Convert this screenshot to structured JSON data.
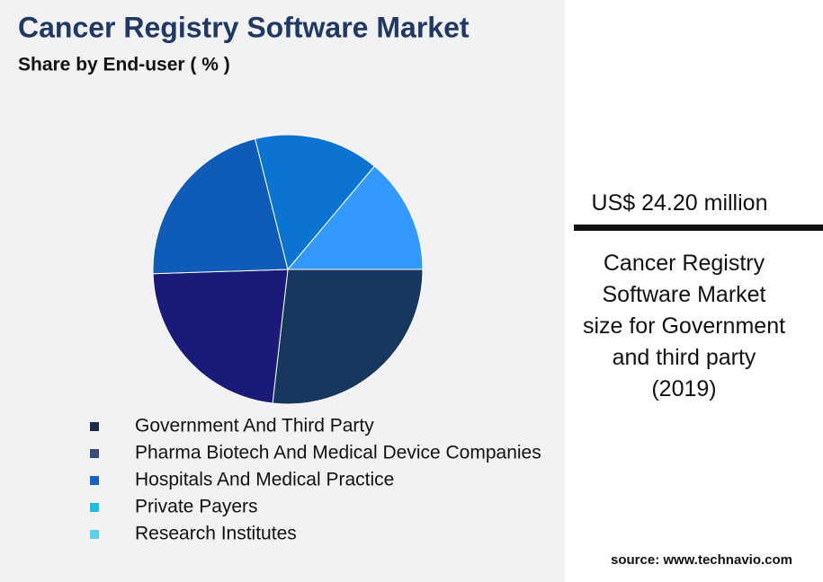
{
  "chart_data": {
    "type": "pie",
    "title": "Cancer Registry Software Market",
    "subtitle": "Share by End-user ( % )",
    "categories": [
      "Government And Third Party",
      "Pharma Biotech And Medical Device Companies",
      "Hospitals And Medical Practice",
      "Private Payers",
      "Research Institutes"
    ],
    "values": [
      26.8,
      22.7,
      21.6,
      15.0,
      13.9
    ],
    "colors": [
      "#17375e",
      "#1a1a78",
      "#0f5cb8",
      "#0a74d0",
      "#3399ff"
    ],
    "legend_colors": [
      "#1b2a4e",
      "#3a4a7a",
      "#1565c0",
      "#1bbfe0",
      "#5ccfef"
    ]
  },
  "highlight": {
    "value": "US$ 24.20 million",
    "description": [
      "Cancer Registry",
      "Software Market",
      "size for Government",
      "and third party",
      "(2019)"
    ]
  },
  "source": "source: www.technavio.com"
}
